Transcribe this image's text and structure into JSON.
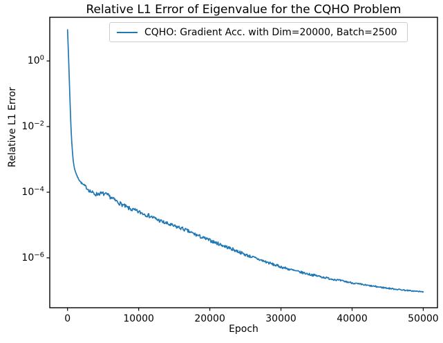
{
  "figure": {
    "title": "Relative L1 Error of Eigenvalue for the CQHO Problem",
    "background_color": "#ffffff",
    "text_color": "#000000",
    "spine_color": "#000000"
  },
  "chart_data": {
    "type": "line",
    "title": "Relative L1 Error of Eigenvalue for the CQHO Problem",
    "xlabel": "Epoch",
    "ylabel": "Relative L1 Error",
    "xscale": "linear",
    "yscale": "log",
    "grid": false,
    "xlim": [
      -2500,
      52000
    ],
    "ylim": [
      3e-08,
      21.0
    ],
    "ylim_exponents": [
      -7.52,
      1.33
    ],
    "xticks": [
      0,
      10000,
      20000,
      30000,
      40000,
      50000
    ],
    "xtick_labels": [
      "0",
      "10000",
      "20000",
      "30000",
      "40000",
      "50000"
    ],
    "ytick_exponents": [
      0,
      -2,
      -4,
      -6
    ],
    "ytick_base": "10",
    "legend": {
      "position": "upper center",
      "border_color": "#cccccc",
      "entries": [
        {
          "label": "CQHO: Gradient Acc. with Dim=20000, Batch=2500",
          "color": "#1f77b4"
        }
      ]
    },
    "series": [
      {
        "name": "CQHO: Gradient Acc. with Dim=20000, Batch=2500",
        "color": "#1f77b4",
        "line_width": 1.7,
        "points": [
          [
            0,
            9.0
          ],
          [
            60,
            4.0
          ],
          [
            120,
            1.8
          ],
          [
            180,
            0.75
          ],
          [
            240,
            0.3
          ],
          [
            300,
            0.12
          ],
          [
            360,
            0.05
          ],
          [
            420,
            0.022
          ],
          [
            480,
            0.01
          ],
          [
            540,
            0.0055
          ],
          [
            600,
            0.0032
          ],
          [
            700,
            0.0016
          ],
          [
            800,
            0.0009
          ],
          [
            900,
            0.00065
          ],
          [
            1000,
            0.0005
          ],
          [
            1200,
            0.00037
          ],
          [
            1400,
            0.00029
          ],
          [
            1600,
            0.000245
          ],
          [
            1800,
            0.00021
          ],
          [
            2000,
            0.000185
          ],
          [
            2250,
            0.000165
          ],
          [
            2500,
            0.00015
          ],
          [
            2750,
            0.000133
          ],
          [
            3000,
            0.000118
          ],
          [
            3250,
            0.000105
          ],
          [
            3500,
            9.6e-05
          ],
          [
            3750,
            9e-05
          ],
          [
            4000,
            8.6e-05
          ],
          [
            4250,
            8.9e-05
          ],
          [
            4500,
            9.2e-05
          ],
          [
            4750,
            9e-05
          ],
          [
            5000,
            9e-05
          ],
          [
            5250,
            8.6e-05
          ],
          [
            5500,
            8.3e-05
          ],
          [
            5750,
            7.8e-05
          ],
          [
            6000,
            7.2e-05
          ],
          [
            6500,
            6e-05
          ],
          [
            7000,
            5.1e-05
          ],
          [
            7500,
            4.4e-05
          ],
          [
            8000,
            3.8e-05
          ],
          [
            8500,
            3.3e-05
          ],
          [
            9000,
            3e-05
          ],
          [
            9500,
            2.75e-05
          ],
          [
            10000,
            2.5e-05
          ],
          [
            10500,
            2.3e-05
          ],
          [
            11000,
            2.1e-05
          ],
          [
            11500,
            1.9e-05
          ],
          [
            12000,
            1.7e-05
          ],
          [
            12500,
            1.5e-05
          ],
          [
            13000,
            1.35e-05
          ],
          [
            13500,
            1.2e-05
          ],
          [
            14000,
            1.1e-05
          ],
          [
            14500,
            1e-05
          ],
          [
            15000,
            9.2e-06
          ],
          [
            15500,
            8.6e-06
          ],
          [
            16000,
            8e-06
          ],
          [
            16500,
            7.2e-06
          ],
          [
            17000,
            6.4e-06
          ],
          [
            17500,
            5.7e-06
          ],
          [
            18000,
            5.1e-06
          ],
          [
            18500,
            4.6e-06
          ],
          [
            19000,
            4.1e-06
          ],
          [
            19500,
            3.75e-06
          ],
          [
            20000,
            3.4e-06
          ],
          [
            21000,
            2.8e-06
          ],
          [
            22000,
            2.3e-06
          ],
          [
            23000,
            1.9e-06
          ],
          [
            24000,
            1.55e-06
          ],
          [
            25000,
            1.25e-06
          ],
          [
            26000,
            1.05e-06
          ],
          [
            27000,
            8.8e-07
          ],
          [
            28000,
            7.4e-07
          ],
          [
            29000,
            6.2e-07
          ],
          [
            30000,
            5.3e-07
          ],
          [
            31000,
            4.6e-07
          ],
          [
            32000,
            4e-07
          ],
          [
            33000,
            3.55e-07
          ],
          [
            34000,
            3.15e-07
          ],
          [
            35000,
            2.85e-07
          ],
          [
            36000,
            2.55e-07
          ],
          [
            37000,
            2.3e-07
          ],
          [
            38000,
            2.1e-07
          ],
          [
            39000,
            1.9e-07
          ],
          [
            40000,
            1.73e-07
          ],
          [
            41000,
            1.58e-07
          ],
          [
            42000,
            1.46e-07
          ],
          [
            43000,
            1.36e-07
          ],
          [
            44000,
            1.27e-07
          ],
          [
            45000,
            1.19e-07
          ],
          [
            46000,
            1.12e-07
          ],
          [
            47000,
            1.06e-07
          ],
          [
            48000,
            1e-07
          ],
          [
            49000,
            9.6e-08
          ],
          [
            50000,
            9.2e-08
          ]
        ],
        "noise_band_decades": [
          [
            0,
            0.004
          ],
          [
            1200,
            0.004
          ],
          [
            3000,
            0.062
          ],
          [
            12000,
            0.062
          ],
          [
            50000,
            0.014
          ]
        ]
      }
    ]
  }
}
